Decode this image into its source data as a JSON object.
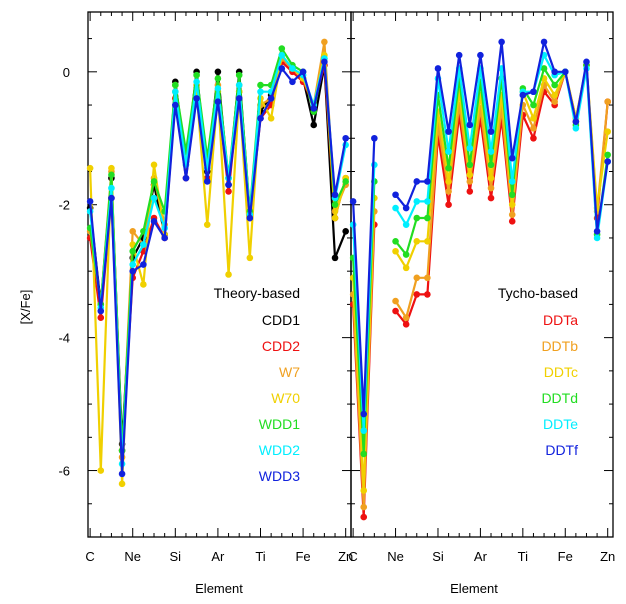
{
  "chart_data": [
    {
      "type": "line",
      "panel": "left",
      "ylabel": "[X/Fe]",
      "xlabel": "Element",
      "ylim": [
        -7.0,
        0.9
      ],
      "y_ticks": [
        0,
        -2,
        -4,
        -6
      ],
      "y_tick_labels": [
        "0",
        "-2",
        "-4",
        "-6"
      ],
      "x": [
        6,
        7,
        8,
        9,
        10,
        11,
        12,
        13,
        14,
        15,
        16,
        17,
        18,
        19,
        20,
        21,
        22,
        23,
        24,
        25,
        26,
        27,
        28,
        29,
        30
      ],
      "xlim": [
        5.8,
        30.5
      ],
      "x_ticks": [
        6,
        10,
        14,
        18,
        22,
        26,
        30
      ],
      "x_tick_labels": [
        "C",
        "Ne",
        "Si",
        "Ar",
        "Ti",
        "Fe",
        "Zn"
      ],
      "legend_title": "Theory-based",
      "legend_position": "bottom-right",
      "series": [
        {
          "name": "CDD1",
          "color": "#000000",
          "values": [
            -2.05,
            -3.5,
            -1.6,
            -5.6,
            -2.8,
            -2.5,
            -1.7,
            -2.45,
            -0.15,
            -1.35,
            0.0,
            -1.5,
            0.0,
            -1.7,
            0.0,
            -2.15,
            -0.6,
            -0.35,
            0.2,
            0.05,
            -0.1,
            -0.8,
            0.1,
            -2.8,
            -2.4
          ]
        },
        {
          "name": "CDD2",
          "color": "#ee1111",
          "values": [
            -2.5,
            -3.7,
            -1.9,
            -5.7,
            -3.1,
            -2.7,
            -2.2,
            -2.5,
            -0.4,
            -1.6,
            -0.3,
            -1.6,
            -0.4,
            -1.8,
            -0.3,
            -2.2,
            -0.7,
            -0.5,
            0.15,
            0.0,
            -0.15,
            -0.5,
            0.1,
            -2.2,
            -1.6
          ]
        },
        {
          "name": "W7",
          "color": "#f0a020",
          "values": [
            -2.4,
            -3.5,
            -1.5,
            -5.8,
            -2.4,
            -2.6,
            -1.6,
            -2.3,
            -0.3,
            -1.3,
            -0.2,
            -1.4,
            -0.2,
            -1.6,
            -0.2,
            -2.1,
            -0.5,
            -0.4,
            0.2,
            0.05,
            -0.1,
            -0.5,
            0.45,
            -2.1,
            -1.7
          ]
        },
        {
          "name": "W70",
          "color": "#f0d000",
          "values": [
            -1.45,
            -6.0,
            -1.45,
            -6.2,
            -2.6,
            -3.2,
            -1.4,
            -2.45,
            -0.2,
            -1.4,
            -0.3,
            -2.3,
            -0.3,
            -3.05,
            -0.3,
            -2.8,
            -0.4,
            -0.7,
            0.25,
            0.05,
            -0.1,
            -0.5,
            0.25,
            -2.2,
            -1.6
          ]
        },
        {
          "name": "WDD1",
          "color": "#22dd22",
          "values": [
            -2.35,
            -3.5,
            -1.55,
            -5.7,
            -2.7,
            -2.4,
            -1.65,
            -2.1,
            -0.2,
            -1.2,
            -0.05,
            -1.3,
            -0.1,
            -1.6,
            -0.05,
            -2.1,
            -0.2,
            -0.2,
            0.35,
            0.1,
            0.0,
            -0.6,
            0.2,
            -2.0,
            -1.65
          ]
        },
        {
          "name": "WDD2",
          "color": "#00eeff",
          "values": [
            -2.1,
            -3.55,
            -1.75,
            -5.9,
            -2.9,
            -2.6,
            -1.9,
            -2.35,
            -0.3,
            -1.4,
            -0.15,
            -1.45,
            -0.25,
            -1.6,
            -0.2,
            -2.15,
            -0.3,
            -0.3,
            0.25,
            0.05,
            -0.05,
            -0.5,
            0.2,
            -1.9,
            -1.1
          ]
        },
        {
          "name": "WDD3",
          "color": "#1122dd",
          "values": [
            -1.95,
            -3.6,
            -1.9,
            -6.05,
            -3.0,
            -2.9,
            -2.25,
            -2.5,
            -0.5,
            -1.6,
            -0.4,
            -1.65,
            -0.45,
            -1.7,
            -0.4,
            -2.2,
            -0.7,
            -0.4,
            0.05,
            -0.15,
            0.0,
            -0.55,
            0.15,
            -1.85,
            -1.0
          ]
        }
      ]
    },
    {
      "type": "line",
      "panel": "right",
      "xlabel": "Element",
      "ylim": [
        -7.0,
        0.9
      ],
      "x": [
        6,
        7,
        8,
        9,
        10,
        11,
        12,
        13,
        14,
        15,
        16,
        17,
        18,
        19,
        20,
        21,
        22,
        23,
        24,
        25,
        26,
        27,
        28,
        29,
        30
      ],
      "xlim": [
        5.8,
        30.5
      ],
      "x_ticks": [
        6,
        10,
        14,
        18,
        22,
        26,
        30
      ],
      "x_tick_labels": [
        "C",
        "Ne",
        "Si",
        "Ar",
        "Ti",
        "Fe",
        "Zn"
      ],
      "legend_title": "Tycho-based",
      "legend_position": "bottom-right",
      "series": [
        {
          "name": "DDTa",
          "color": "#ee1111",
          "values": [
            -3.5,
            -6.7,
            -2.3,
            null,
            -3.6,
            -3.8,
            -3.35,
            -3.35,
            -0.95,
            -2.0,
            -0.65,
            -1.8,
            -0.7,
            -1.9,
            -0.7,
            -2.25,
            -0.65,
            -1.0,
            -0.3,
            -0.5,
            0.0,
            -0.75,
            0.1,
            -2.2,
            -0.45
          ]
        },
        {
          "name": "DDTb",
          "color": "#f0a020",
          "values": [
            -3.35,
            -6.55,
            -2.1,
            null,
            -3.45,
            -3.7,
            -3.1,
            -3.1,
            -0.8,
            -1.8,
            -0.5,
            -1.65,
            -0.55,
            -1.75,
            -0.55,
            -2.15,
            -0.5,
            -0.85,
            -0.2,
            -0.45,
            0.0,
            -0.7,
            0.1,
            -2.1,
            -0.45
          ]
        },
        {
          "name": "DDTc",
          "color": "#f0d000",
          "values": [
            -3.1,
            -6.3,
            -1.9,
            null,
            -2.7,
            -2.95,
            -2.55,
            -2.55,
            -0.6,
            -1.65,
            -0.3,
            -1.55,
            -0.35,
            -1.6,
            -0.35,
            -2.0,
            -0.3,
            -0.7,
            -0.1,
            -0.35,
            0.0,
            -0.7,
            0.1,
            -2.05,
            -0.9
          ]
        },
        {
          "name": "DDTd",
          "color": "#22dd22",
          "values": [
            -2.8,
            -5.75,
            -1.65,
            null,
            -2.55,
            -2.75,
            -2.2,
            -2.2,
            -0.35,
            -1.45,
            -0.1,
            -1.4,
            -0.15,
            -1.4,
            -0.1,
            -1.85,
            -0.25,
            -0.5,
            0.05,
            -0.2,
            0.0,
            -0.8,
            0.1,
            -2.45,
            -1.25
          ]
        },
        {
          "name": "DDTe",
          "color": "#00eeff",
          "values": [
            -2.3,
            -5.4,
            -1.4,
            null,
            -2.05,
            -2.3,
            -1.95,
            -1.95,
            -0.1,
            -1.2,
            0.05,
            -1.15,
            0.05,
            -1.2,
            0.05,
            -1.65,
            -0.3,
            -0.3,
            0.25,
            -0.05,
            0.0,
            -0.85,
            0.05,
            -2.5,
            -1.35
          ]
        },
        {
          "name": "DDTf",
          "color": "#1122dd",
          "values": [
            -1.95,
            -5.15,
            -1.0,
            null,
            -1.85,
            -2.05,
            -1.65,
            -1.65,
            0.05,
            -0.9,
            0.25,
            -0.8,
            0.25,
            -0.9,
            0.45,
            -1.3,
            -0.35,
            -0.3,
            0.45,
            0.0,
            0.0,
            -0.75,
            0.15,
            -2.4,
            -1.35
          ]
        }
      ]
    }
  ]
}
